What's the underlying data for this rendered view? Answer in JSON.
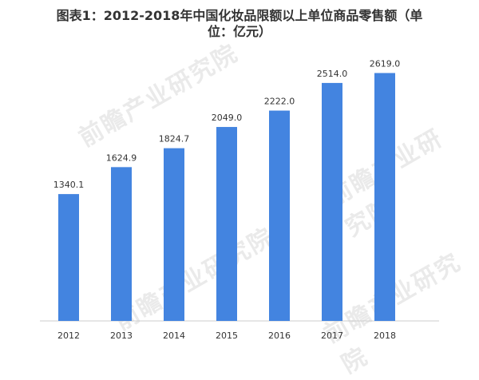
{
  "title_lines": [
    "图表1：2012-2018年中国化妆品限额以上单位商品零售额（单",
    "位：亿元）"
  ],
  "watermark_text": "前瞻产业研究院",
  "colors": {
    "bar": "#4384E0",
    "text": "#333333",
    "axis": "#cccccc"
  },
  "chart_data": {
    "type": "bar",
    "title": "图表1：2012-2018年中国化妆品限额以上单位商品零售额（单位：亿元）",
    "categories": [
      "2012",
      "2013",
      "2014",
      "2015",
      "2016",
      "2017",
      "2018"
    ],
    "values": [
      1340.1,
      1624.9,
      1824.7,
      2049.0,
      2222.0,
      2514.0,
      2619.0
    ],
    "value_labels": [
      "1340.1",
      "1624.9",
      "1824.7",
      "2049.0",
      "2222.0",
      "2514.0",
      "2619.0"
    ],
    "ylim": [
      0,
      2800
    ],
    "grid": false,
    "legend": "none"
  }
}
